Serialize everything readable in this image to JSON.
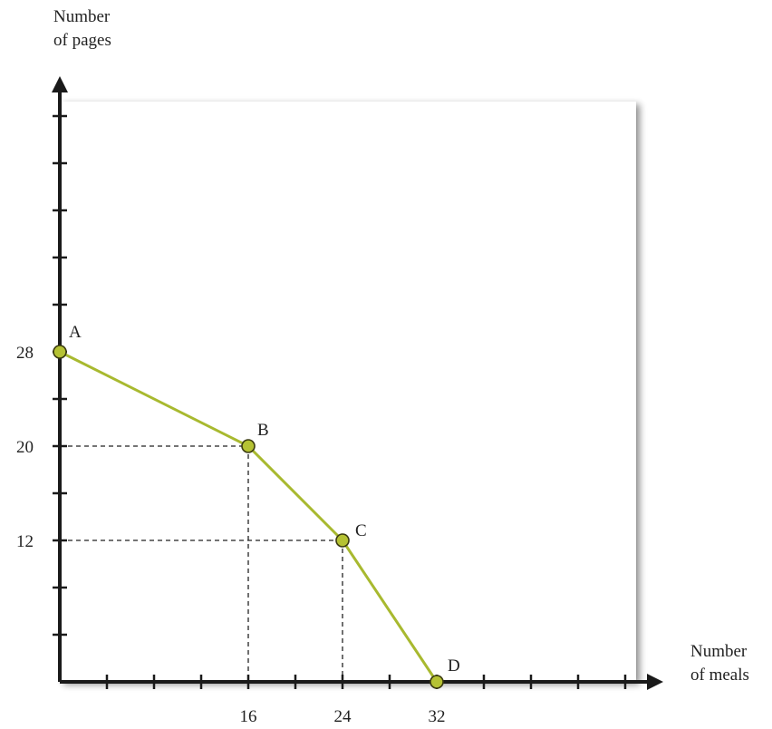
{
  "chart_data": {
    "type": "line",
    "title": "",
    "xlabel": [
      "Number",
      "of meals"
    ],
    "ylabel": [
      "Number",
      "of pages"
    ],
    "xlim": [
      0,
      48
    ],
    "ylim": [
      0,
      48
    ],
    "x_ticks_labeled": [
      16,
      24,
      32
    ],
    "y_ticks_labeled": [
      28,
      20,
      12
    ],
    "grid": false,
    "series": [
      {
        "color": "#a8b92f",
        "points": [
          {
            "label": "A",
            "x": 0,
            "y": 28
          },
          {
            "label": "B",
            "x": 16,
            "y": 20
          },
          {
            "label": "C",
            "x": 24,
            "y": 12
          },
          {
            "label": "D",
            "x": 32,
            "y": 0
          }
        ]
      }
    ],
    "guides": [
      {
        "x": 16,
        "y": 20
      },
      {
        "x": 24,
        "y": 12
      }
    ]
  },
  "colors": {
    "line": "#a8b92f",
    "marker_fill": "#b5c233",
    "marker_stroke": "#3a3a10",
    "axis": "#1a1a1a",
    "guide": "#222222",
    "panel_shadow": "#b8b8b8"
  }
}
